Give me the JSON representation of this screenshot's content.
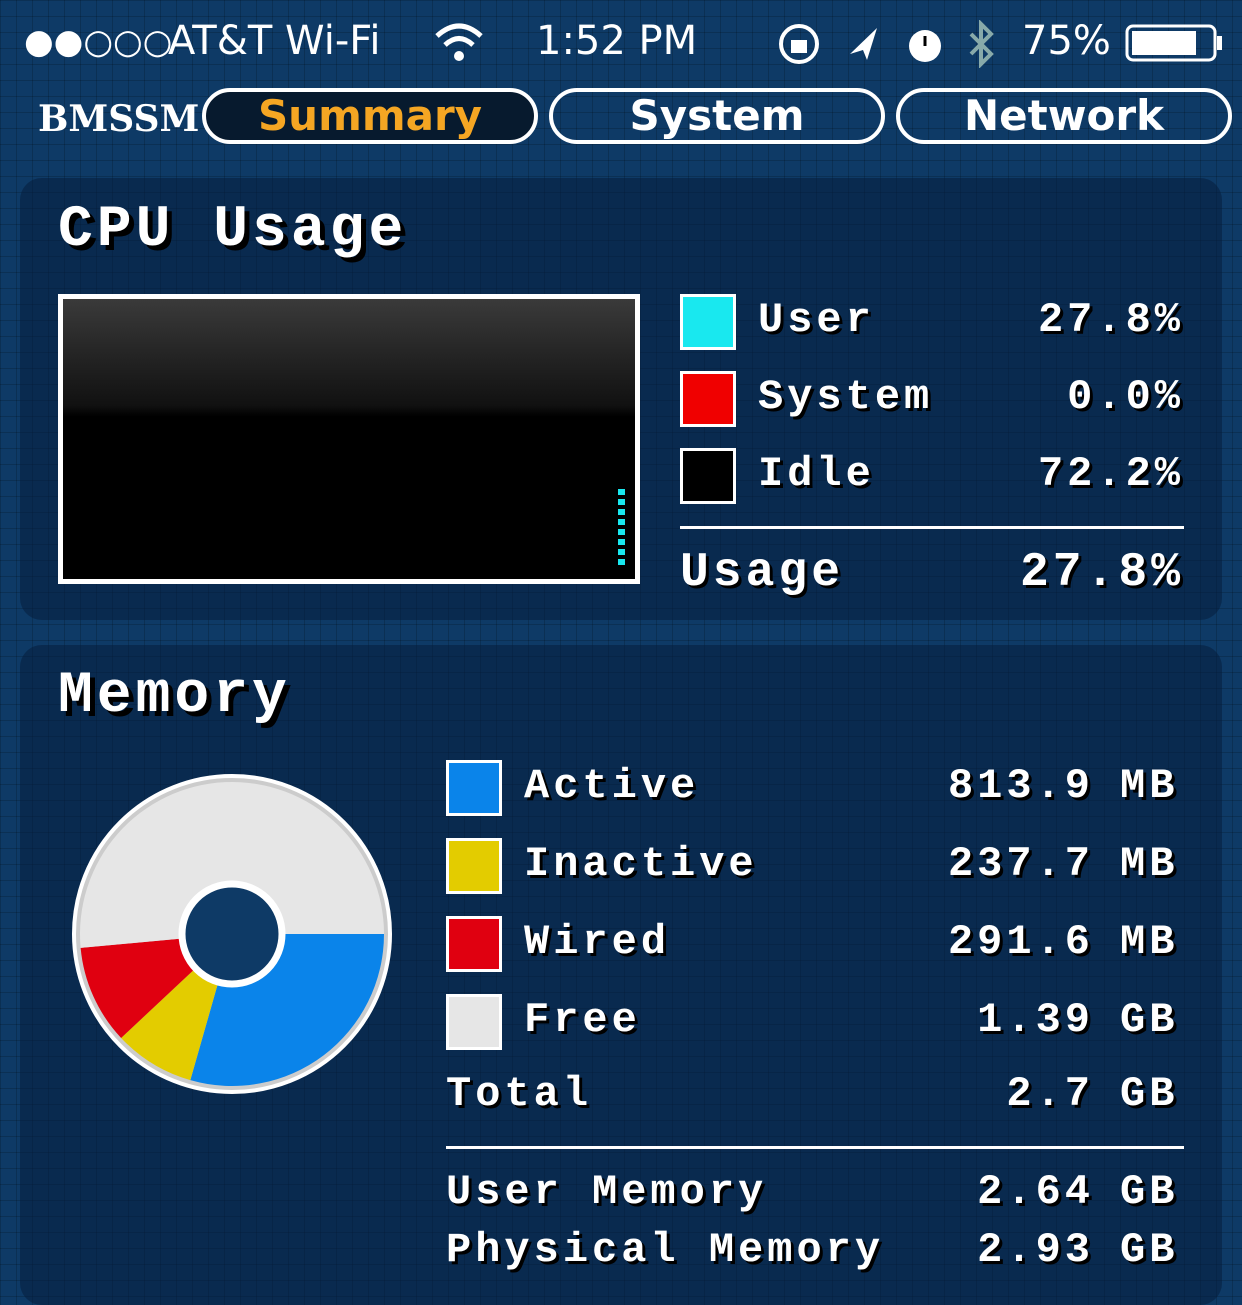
{
  "status_bar": {
    "carrier": "AT&T Wi-Fi",
    "time": "1:52 PM",
    "battery": "75%"
  },
  "tabs": {
    "app": "BMSSM",
    "items": [
      "Summary",
      "System",
      "Network"
    ],
    "active": 0
  },
  "cpu": {
    "title": "CPU Usage",
    "rows": [
      {
        "name": "User",
        "value": "27.8%",
        "color": "#19e8ef"
      },
      {
        "name": "System",
        "value": "0.0%",
        "color": "#f00000"
      },
      {
        "name": "Idle",
        "value": "72.2%",
        "color": "#000000"
      }
    ],
    "total": {
      "label": "Usage",
      "value": "27.8%"
    }
  },
  "memory": {
    "title": "Memory",
    "rows": [
      {
        "name": "Active",
        "value": 813.9,
        "unit": "MB",
        "color": "#0a84ea"
      },
      {
        "name": "Inactive",
        "value": 237.7,
        "unit": "MB",
        "color": "#e3cc00"
      },
      {
        "name": "Wired",
        "value": 291.6,
        "unit": "MB",
        "color": "#e00010"
      },
      {
        "name": "Free",
        "value": 1.39,
        "unit": "GB",
        "color": "#e6e6e6"
      }
    ],
    "total": {
      "label": "Total",
      "value": 2.7,
      "unit": "GB"
    },
    "extra": [
      {
        "label": "User Memory",
        "value": 2.64,
        "unit": "GB"
      },
      {
        "label": "Physical Memory",
        "value": 2.93,
        "unit": "GB"
      }
    ]
  }
}
